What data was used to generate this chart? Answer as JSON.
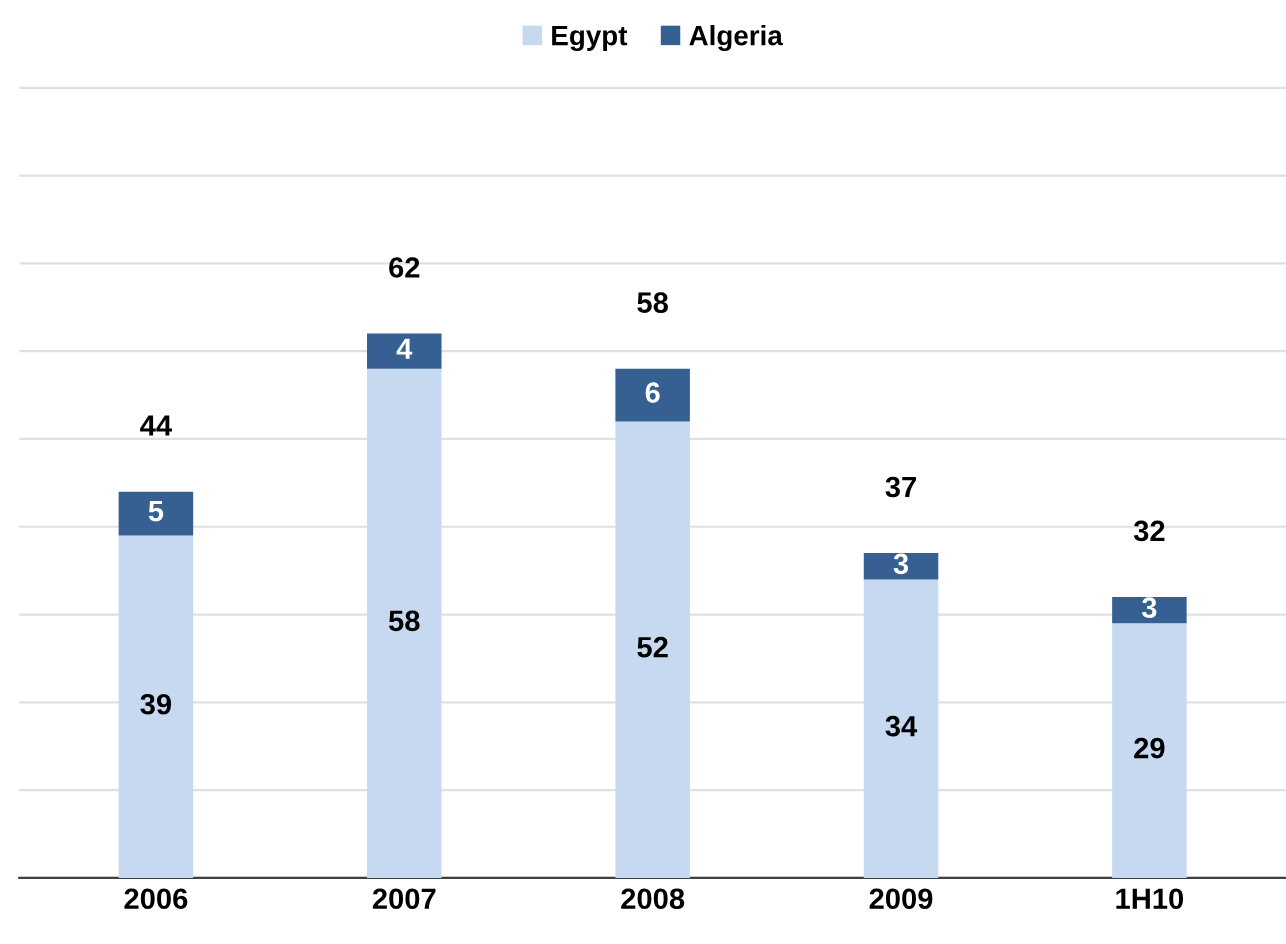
{
  "chart_data": {
    "type": "bar",
    "stacked": true,
    "categories": [
      "2006",
      "2007",
      "2008",
      "2009",
      "1H10"
    ],
    "series": [
      {
        "name": "Egypt",
        "color": "#c6d9f1",
        "values": [
          39,
          58,
          52,
          34,
          29
        ]
      },
      {
        "name": "Algeria",
        "color": "#366092",
        "values": [
          5,
          4,
          6,
          3,
          3
        ]
      }
    ],
    "totals": [
      "44",
      "62",
      "58",
      "37",
      "32"
    ],
    "data_labels": true,
    "yticks": [
      {
        "value": 0,
        "label": null
      },
      {
        "value": 10,
        "label": null
      },
      {
        "value": 20,
        "label": null
      },
      {
        "value": 30,
        "label": null
      },
      {
        "value": 40,
        "label": null
      },
      {
        "value": 50,
        "label": null
      },
      {
        "value": 60,
        "label": null
      },
      {
        "value": 70,
        "label": null
      },
      {
        "value": 80,
        "label": null
      },
      {
        "value": 90,
        "label": null
      }
    ],
    "tick_labels": "x",
    "grid": "y",
    "legend": "top"
  }
}
